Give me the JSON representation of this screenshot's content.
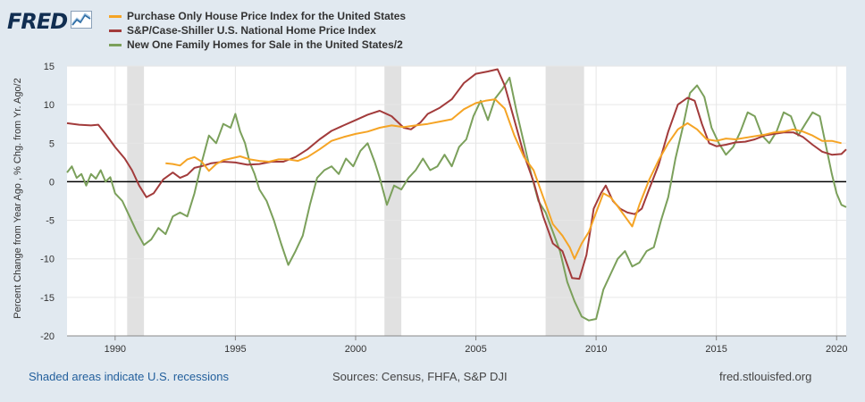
{
  "header": {
    "logo_text": "FRED",
    "logo_icon": "chart-line-icon"
  },
  "chart_data": {
    "type": "line",
    "ylabel": "Percent Change from Year Ago , % Chg. from Yr. Ago/2",
    "xlabel": "",
    "xlim": [
      1988.0,
      2020.4
    ],
    "ylim": [
      -20,
      15
    ],
    "yticks": [
      15,
      10,
      5,
      0,
      -5,
      -10,
      -15,
      -20
    ],
    "xticks": [
      "1990",
      "1995",
      "2000",
      "2005",
      "2010",
      "2015",
      "2020"
    ],
    "grid": true,
    "legend_position": "top-left",
    "recessions": [
      [
        1990.5,
        1991.2
      ],
      [
        2001.2,
        2001.9
      ],
      [
        2007.9,
        2009.5
      ]
    ],
    "series": [
      {
        "name": "Purchase Only House Price Index for the United States",
        "color": "#f5a425",
        "points": [
          [
            1992.1,
            2.4
          ],
          [
            1992.4,
            2.3
          ],
          [
            1992.7,
            2.1
          ],
          [
            1993.0,
            2.9
          ],
          [
            1993.3,
            3.2
          ],
          [
            1993.6,
            2.6
          ],
          [
            1993.9,
            1.4
          ],
          [
            1994.2,
            2.3
          ],
          [
            1994.5,
            2.8
          ],
          [
            1994.8,
            3.0
          ],
          [
            1995.2,
            3.3
          ],
          [
            1995.6,
            2.9
          ],
          [
            1996.0,
            2.7
          ],
          [
            1996.4,
            2.6
          ],
          [
            1996.8,
            2.9
          ],
          [
            1997.2,
            2.9
          ],
          [
            1997.6,
            2.7
          ],
          [
            1998.0,
            3.2
          ],
          [
            1998.5,
            4.2
          ],
          [
            1999.0,
            5.3
          ],
          [
            1999.5,
            5.8
          ],
          [
            2000.0,
            6.2
          ],
          [
            2000.5,
            6.5
          ],
          [
            2001.0,
            7.0
          ],
          [
            2001.5,
            7.3
          ],
          [
            2002.0,
            7.1
          ],
          [
            2002.5,
            7.3
          ],
          [
            2003.0,
            7.5
          ],
          [
            2003.5,
            7.8
          ],
          [
            2004.0,
            8.1
          ],
          [
            2004.5,
            9.4
          ],
          [
            2005.0,
            10.2
          ],
          [
            2005.4,
            10.5
          ],
          [
            2005.8,
            10.7
          ],
          [
            2006.2,
            9.5
          ],
          [
            2006.6,
            6.0
          ],
          [
            2007.0,
            3.2
          ],
          [
            2007.4,
            1.5
          ],
          [
            2007.8,
            -2.0
          ],
          [
            2008.2,
            -5.5
          ],
          [
            2008.6,
            -7.0
          ],
          [
            2008.9,
            -8.5
          ],
          [
            2009.1,
            -10.0
          ],
          [
            2009.4,
            -8.0
          ],
          [
            2009.7,
            -6.5
          ],
          [
            2010.0,
            -4.0
          ],
          [
            2010.3,
            -1.5
          ],
          [
            2010.6,
            -2.0
          ],
          [
            2010.9,
            -3.2
          ],
          [
            2011.2,
            -4.5
          ],
          [
            2011.5,
            -5.8
          ],
          [
            2011.8,
            -3.0
          ],
          [
            2012.2,
            0.2
          ],
          [
            2012.6,
            2.8
          ],
          [
            2013.0,
            5.0
          ],
          [
            2013.4,
            6.8
          ],
          [
            2013.8,
            7.6
          ],
          [
            2014.2,
            6.8
          ],
          [
            2014.6,
            5.5
          ],
          [
            2015.0,
            5.3
          ],
          [
            2015.4,
            5.6
          ],
          [
            2015.8,
            5.5
          ],
          [
            2016.2,
            5.7
          ],
          [
            2016.6,
            5.9
          ],
          [
            2017.0,
            6.1
          ],
          [
            2017.4,
            6.4
          ],
          [
            2017.8,
            6.5
          ],
          [
            2018.2,
            6.8
          ],
          [
            2018.6,
            6.5
          ],
          [
            2019.0,
            6.0
          ],
          [
            2019.4,
            5.3
          ],
          [
            2019.8,
            5.3
          ],
          [
            2020.2,
            5.0
          ]
        ]
      },
      {
        "name": "S&P/Case-Shiller U.S. National Home Price Index",
        "color": "#a23b3b",
        "points": [
          [
            1988.0,
            7.6
          ],
          [
            1988.5,
            7.4
          ],
          [
            1989.0,
            7.3
          ],
          [
            1989.3,
            7.4
          ],
          [
            1989.6,
            6.2
          ],
          [
            1990.0,
            4.5
          ],
          [
            1990.4,
            3.0
          ],
          [
            1990.7,
            1.5
          ],
          [
            1991.0,
            -0.5
          ],
          [
            1991.3,
            -2.0
          ],
          [
            1991.6,
            -1.5
          ],
          [
            1992.0,
            0.3
          ],
          [
            1992.4,
            1.2
          ],
          [
            1992.7,
            0.5
          ],
          [
            1993.0,
            0.9
          ],
          [
            1993.3,
            1.8
          ],
          [
            1993.7,
            2.1
          ],
          [
            1994.0,
            2.4
          ],
          [
            1994.5,
            2.6
          ],
          [
            1995.0,
            2.5
          ],
          [
            1995.5,
            2.2
          ],
          [
            1996.0,
            2.3
          ],
          [
            1996.5,
            2.6
          ],
          [
            1997.0,
            2.6
          ],
          [
            1997.5,
            3.2
          ],
          [
            1998.0,
            4.2
          ],
          [
            1998.5,
            5.5
          ],
          [
            1999.0,
            6.6
          ],
          [
            1999.5,
            7.3
          ],
          [
            2000.0,
            8.0
          ],
          [
            2000.5,
            8.7
          ],
          [
            2001.0,
            9.2
          ],
          [
            2001.5,
            8.5
          ],
          [
            2002.0,
            7.0
          ],
          [
            2002.3,
            6.8
          ],
          [
            2002.7,
            7.7
          ],
          [
            2003.0,
            8.8
          ],
          [
            2003.5,
            9.6
          ],
          [
            2004.0,
            10.7
          ],
          [
            2004.5,
            12.8
          ],
          [
            2005.0,
            14.0
          ],
          [
            2005.5,
            14.3
          ],
          [
            2005.9,
            14.6
          ],
          [
            2006.2,
            12.5
          ],
          [
            2006.6,
            8.0
          ],
          [
            2007.0,
            3.5
          ],
          [
            2007.4,
            0.0
          ],
          [
            2007.8,
            -4.5
          ],
          [
            2008.2,
            -8.0
          ],
          [
            2008.6,
            -9.0
          ],
          [
            2009.0,
            -12.5
          ],
          [
            2009.3,
            -12.6
          ],
          [
            2009.6,
            -9.5
          ],
          [
            2009.9,
            -3.5
          ],
          [
            2010.2,
            -1.5
          ],
          [
            2010.4,
            -0.5
          ],
          [
            2010.7,
            -2.5
          ],
          [
            2011.0,
            -3.5
          ],
          [
            2011.3,
            -4.0
          ],
          [
            2011.6,
            -4.2
          ],
          [
            2011.9,
            -3.5
          ],
          [
            2012.2,
            -1.0
          ],
          [
            2012.6,
            2.2
          ],
          [
            2013.0,
            6.5
          ],
          [
            2013.4,
            10.0
          ],
          [
            2013.8,
            10.9
          ],
          [
            2014.1,
            10.5
          ],
          [
            2014.4,
            7.5
          ],
          [
            2014.7,
            5.0
          ],
          [
            2015.0,
            4.6
          ],
          [
            2015.4,
            4.8
          ],
          [
            2015.8,
            5.1
          ],
          [
            2016.2,
            5.2
          ],
          [
            2016.6,
            5.5
          ],
          [
            2017.0,
            6.0
          ],
          [
            2017.4,
            6.2
          ],
          [
            2017.8,
            6.4
          ],
          [
            2018.2,
            6.4
          ],
          [
            2018.6,
            5.8
          ],
          [
            2019.0,
            4.8
          ],
          [
            2019.4,
            3.9
          ],
          [
            2019.8,
            3.5
          ],
          [
            2020.2,
            3.6
          ],
          [
            2020.4,
            4.2
          ]
        ]
      },
      {
        "name": "New One Family Homes for Sale in the United States/2",
        "color": "#7ba05b",
        "points": [
          [
            1988.0,
            1.2
          ],
          [
            1988.2,
            2.0
          ],
          [
            1988.4,
            0.5
          ],
          [
            1988.6,
            1.0
          ],
          [
            1988.8,
            -0.5
          ],
          [
            1989.0,
            1.0
          ],
          [
            1989.2,
            0.4
          ],
          [
            1989.4,
            1.5
          ],
          [
            1989.6,
            0.0
          ],
          [
            1989.8,
            0.6
          ],
          [
            1990.0,
            -1.5
          ],
          [
            1990.3,
            -2.5
          ],
          [
            1990.6,
            -4.5
          ],
          [
            1990.9,
            -6.5
          ],
          [
            1991.2,
            -8.2
          ],
          [
            1991.5,
            -7.5
          ],
          [
            1991.8,
            -6.0
          ],
          [
            1992.1,
            -6.8
          ],
          [
            1992.4,
            -4.5
          ],
          [
            1992.7,
            -4.0
          ],
          [
            1993.0,
            -4.5
          ],
          [
            1993.3,
            -1.5
          ],
          [
            1993.6,
            2.5
          ],
          [
            1993.9,
            6.0
          ],
          [
            1994.2,
            5.0
          ],
          [
            1994.5,
            7.5
          ],
          [
            1994.8,
            7.0
          ],
          [
            1995.0,
            8.8
          ],
          [
            1995.2,
            6.5
          ],
          [
            1995.4,
            5.0
          ],
          [
            1995.6,
            2.5
          ],
          [
            1995.8,
            1.0
          ],
          [
            1996.0,
            -1.0
          ],
          [
            1996.3,
            -2.5
          ],
          [
            1996.6,
            -5.0
          ],
          [
            1996.9,
            -8.0
          ],
          [
            1997.2,
            -10.8
          ],
          [
            1997.5,
            -9.0
          ],
          [
            1997.8,
            -7.0
          ],
          [
            1998.1,
            -3.0
          ],
          [
            1998.4,
            0.5
          ],
          [
            1998.7,
            1.5
          ],
          [
            1999.0,
            2.0
          ],
          [
            1999.3,
            1.0
          ],
          [
            1999.6,
            3.0
          ],
          [
            1999.9,
            2.0
          ],
          [
            2000.2,
            4.0
          ],
          [
            2000.5,
            5.0
          ],
          [
            2000.8,
            2.5
          ],
          [
            2001.0,
            0.5
          ],
          [
            2001.3,
            -3.0
          ],
          [
            2001.6,
            -0.5
          ],
          [
            2001.9,
            -1.0
          ],
          [
            2002.2,
            0.5
          ],
          [
            2002.5,
            1.5
          ],
          [
            2002.8,
            3.0
          ],
          [
            2003.1,
            1.5
          ],
          [
            2003.4,
            2.0
          ],
          [
            2003.7,
            3.5
          ],
          [
            2004.0,
            2.0
          ],
          [
            2004.3,
            4.5
          ],
          [
            2004.6,
            5.5
          ],
          [
            2004.9,
            8.5
          ],
          [
            2005.2,
            10.5
          ],
          [
            2005.5,
            8.0
          ],
          [
            2005.8,
            10.8
          ],
          [
            2006.1,
            12.0
          ],
          [
            2006.4,
            13.5
          ],
          [
            2006.7,
            9.0
          ],
          [
            2007.0,
            5.0
          ],
          [
            2007.3,
            1.0
          ],
          [
            2007.6,
            -2.5
          ],
          [
            2007.9,
            -4.0
          ],
          [
            2008.2,
            -6.5
          ],
          [
            2008.5,
            -9.0
          ],
          [
            2008.8,
            -13.0
          ],
          [
            2009.1,
            -15.5
          ],
          [
            2009.4,
            -17.5
          ],
          [
            2009.7,
            -18.0
          ],
          [
            2010.0,
            -17.8
          ],
          [
            2010.3,
            -14.0
          ],
          [
            2010.6,
            -12.0
          ],
          [
            2010.9,
            -10.0
          ],
          [
            2011.2,
            -9.0
          ],
          [
            2011.5,
            -11.0
          ],
          [
            2011.8,
            -10.5
          ],
          [
            2012.1,
            -9.0
          ],
          [
            2012.4,
            -8.5
          ],
          [
            2012.7,
            -5.0
          ],
          [
            2013.0,
            -2.0
          ],
          [
            2013.3,
            3.0
          ],
          [
            2013.6,
            7.0
          ],
          [
            2013.9,
            11.5
          ],
          [
            2014.2,
            12.5
          ],
          [
            2014.5,
            11.0
          ],
          [
            2014.8,
            7.0
          ],
          [
            2015.1,
            5.0
          ],
          [
            2015.4,
            3.5
          ],
          [
            2015.7,
            4.5
          ],
          [
            2016.0,
            6.5
          ],
          [
            2016.3,
            9.0
          ],
          [
            2016.6,
            8.5
          ],
          [
            2016.9,
            6.0
          ],
          [
            2017.2,
            5.0
          ],
          [
            2017.5,
            6.5
          ],
          [
            2017.8,
            9.0
          ],
          [
            2018.1,
            8.5
          ],
          [
            2018.4,
            6.0
          ],
          [
            2018.7,
            7.5
          ],
          [
            2019.0,
            9.0
          ],
          [
            2019.3,
            8.5
          ],
          [
            2019.6,
            4.0
          ],
          [
            2019.8,
            1.0
          ],
          [
            2020.0,
            -1.5
          ],
          [
            2020.2,
            -3.0
          ],
          [
            2020.4,
            -3.3
          ]
        ]
      }
    ]
  },
  "footer": {
    "recession_note": "Shaded areas indicate U.S. recessions",
    "sources": "Sources: Census, FHFA, S&P DJI",
    "site": "fred.stlouisfed.org"
  }
}
